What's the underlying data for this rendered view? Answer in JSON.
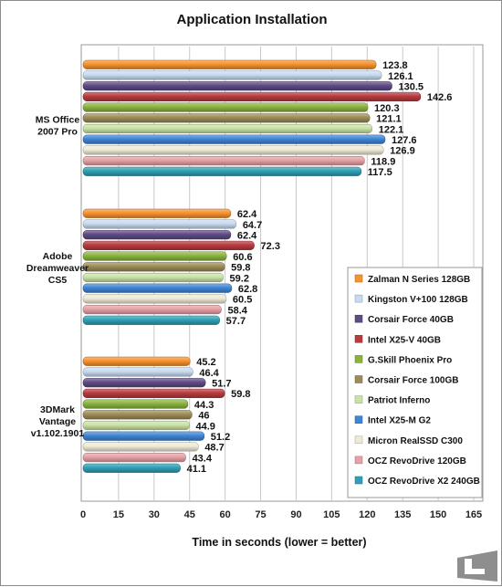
{
  "chart_data": {
    "type": "bar",
    "orientation": "horizontal",
    "title": "Application Installation",
    "xlabel": "Time in seconds  (lower = better)",
    "ylabel": "",
    "xlim": [
      0,
      165
    ],
    "xticks": [
      0,
      15,
      30,
      45,
      60,
      75,
      90,
      105,
      120,
      135,
      150,
      165
    ],
    "grid": true,
    "legend_position": "right",
    "categories": [
      "MS Office 2007 Pro",
      "Adobe Dreamweaver CS5",
      "3DMark Vantage v1.102.1901"
    ],
    "category_lines": [
      [
        "MS Office",
        "2007 Pro"
      ],
      [
        "Adobe",
        "Dreamweaver",
        "CS5"
      ],
      [
        "3DMark",
        "Vantage",
        "v1.102.1901"
      ]
    ],
    "series": [
      {
        "name": "Zalman N Series 128GB",
        "color": "#F7922E",
        "values": [
          123.8,
          62.4,
          45.2
        ],
        "labels": [
          "123.8",
          "62.4",
          "45.2"
        ]
      },
      {
        "name": "Kingston V+100 128GB",
        "color": "#C7DAF0",
        "values": [
          126.1,
          64.7,
          46.4
        ],
        "labels": [
          "126.1",
          "64.7",
          "46.4"
        ]
      },
      {
        "name": "Corsair Force 40GB",
        "color": "#5E4A85",
        "values": [
          130.5,
          62.4,
          51.7
        ],
        "labels": [
          "130.5",
          "62.4",
          "51.7"
        ]
      },
      {
        "name": "Intel X25-V 40GB",
        "color": "#B83A3E",
        "values": [
          142.6,
          72.3,
          59.8
        ],
        "labels": [
          "142.6",
          "72.3",
          "59.8"
        ]
      },
      {
        "name": "G.Skill Phoenix Pro",
        "color": "#8AB33E",
        "values": [
          120.3,
          60.6,
          44.3
        ],
        "labels": [
          "120.3",
          "60.6",
          "44.3"
        ]
      },
      {
        "name": "Corsair Force 100GB",
        "color": "#9C8C57",
        "values": [
          121.1,
          59.8,
          46
        ],
        "labels": [
          "121.1",
          "59.8",
          "46"
        ]
      },
      {
        "name": "Patriot Inferno",
        "color": "#C9E3A6",
        "values": [
          122.1,
          59.2,
          44.9
        ],
        "labels": [
          "122.1",
          "59.2",
          "44.9"
        ]
      },
      {
        "name": "Intel X25-M G2",
        "color": "#3E85D6",
        "values": [
          127.6,
          62.8,
          51.2
        ],
        "labels": [
          "127.6",
          "62.8",
          "51.2"
        ]
      },
      {
        "name": "Micron RealSSD C300",
        "color": "#EFE9D6",
        "values": [
          126.9,
          60.5,
          48.7
        ],
        "labels": [
          "126.9",
          "60.5",
          "48.7"
        ]
      },
      {
        "name": "OCZ RevoDrive 120GB",
        "color": "#E6A1A6",
        "values": [
          118.9,
          58.4,
          43.4
        ],
        "labels": [
          "118.9",
          "58.4",
          "43.4"
        ]
      },
      {
        "name": "OCZ RevoDrive  X2 240GB",
        "color": "#2FA0B5",
        "values": [
          117.5,
          57.7,
          41.1
        ],
        "labels": [
          "117.5",
          "57.7",
          "41.1"
        ]
      }
    ]
  }
}
